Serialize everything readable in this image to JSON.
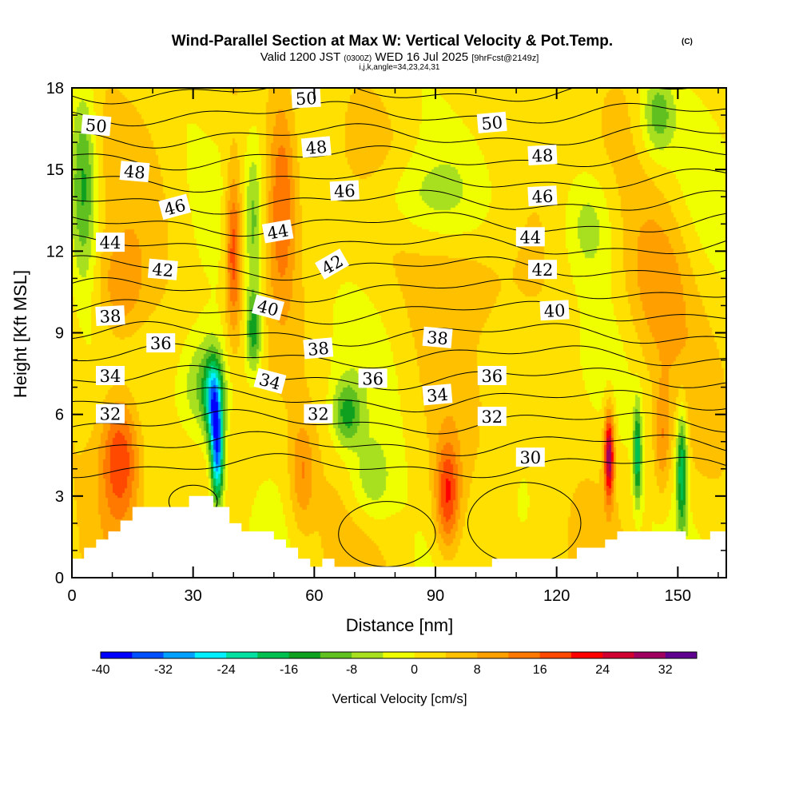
{
  "chart_data": {
    "type": "heatmap",
    "title": "Wind-Parallel Section at Max W: Vertical Velocity & Pot.Temp.",
    "title_mark": "(C)",
    "subtitle_parts": [
      "Valid 1200 JST",
      "(0300Z)",
      "WED 16 Jul 2025",
      "[9hrFcst@2149z]"
    ],
    "subtitle2": "i,j,k,angle=34,23,24,31",
    "xlabel": "Distance [nm]",
    "ylabel": "Height [Kft MSL]",
    "xlim": [
      0,
      162
    ],
    "ylim": [
      0,
      18
    ],
    "xticks": [
      0,
      30,
      60,
      90,
      120,
      150
    ],
    "yticks": [
      0,
      3,
      6,
      9,
      12,
      15,
      18
    ],
    "colorbar": {
      "label": "Vertical Velocity [cm/s]",
      "levels": [
        -40,
        -36,
        -32,
        -28,
        -24,
        -20,
        -16,
        -12,
        -8,
        -4,
        0,
        4,
        8,
        12,
        16,
        20,
        24,
        28,
        32,
        36
      ],
      "tick_labels": [
        "-40",
        "-32",
        "-24",
        "-16",
        "-8",
        "0",
        "8",
        "16",
        "24",
        "32"
      ],
      "colors": [
        "#0000ff",
        "#0050ff",
        "#00a0ff",
        "#00f0ff",
        "#00e0a0",
        "#00c050",
        "#10a020",
        "#60c020",
        "#a8e020",
        "#f0ff00",
        "#ffe000",
        "#ffc000",
        "#ffa000",
        "#ff7800",
        "#ff4800",
        "#ff0000",
        "#d00030",
        "#a00060",
        "#600090"
      ]
    },
    "velocity_features": [
      {
        "x": 3,
        "z": 14.5,
        "w": -14,
        "wx": 3,
        "wz": 3.5
      },
      {
        "x": 12,
        "z": 4.5,
        "w": 20,
        "wx": 5,
        "wz": 2.5
      },
      {
        "x": 12,
        "z": 10.5,
        "w": 10,
        "wx": 6,
        "wz": 2
      },
      {
        "x": 33,
        "z": 7,
        "w": -14,
        "wx": 6,
        "wz": 2
      },
      {
        "x": 36,
        "z": 4.5,
        "w": -34,
        "wx": 1.6,
        "wz": 1.8
      },
      {
        "x": 35,
        "z": 6.5,
        "w": -24,
        "wx": 2,
        "wz": 1.5
      },
      {
        "x": 40,
        "z": 12,
        "w": 18,
        "wx": 2,
        "wz": 3
      },
      {
        "x": 45,
        "z": 9,
        "w": -16,
        "wx": 2,
        "wz": 1.5
      },
      {
        "x": 45,
        "z": 13,
        "w": -10,
        "wx": 2,
        "wz": 3
      },
      {
        "x": 52,
        "z": 14,
        "w": 14,
        "wx": 3.5,
        "wz": 4
      },
      {
        "x": 57,
        "z": 3.8,
        "w": 10,
        "wx": 3,
        "wz": 2
      },
      {
        "x": 68,
        "z": 6,
        "w": -14,
        "wx": 3.5,
        "wz": 1.2
      },
      {
        "x": 74,
        "z": 3.5,
        "w": -8,
        "wx": 5,
        "wz": 1.5
      },
      {
        "x": 84,
        "z": 14,
        "w": -6,
        "wx": 12,
        "wz": 1.5
      },
      {
        "x": 93,
        "z": 3,
        "w": 18,
        "wx": 3,
        "wz": 2
      },
      {
        "x": 97,
        "z": 11,
        "w": 6,
        "wx": 10,
        "wz": 2
      },
      {
        "x": 133,
        "z": 4.5,
        "w": 30,
        "wx": 1.2,
        "wz": 1.6
      },
      {
        "x": 140,
        "z": 4.5,
        "w": -20,
        "wx": 1,
        "wz": 1.8
      },
      {
        "x": 146,
        "z": 5,
        "w": 10,
        "wx": 2,
        "wz": 2
      },
      {
        "x": 151,
        "z": 4,
        "w": -22,
        "wx": 1.4,
        "wz": 2.2
      },
      {
        "x": 145,
        "z": 11,
        "w": 8,
        "wx": 8,
        "wz": 3
      },
      {
        "x": 128,
        "z": 13,
        "w": -8,
        "wx": 6,
        "wz": 2
      },
      {
        "x": 145,
        "z": 17,
        "w": -12,
        "wx": 4,
        "wz": 1.5
      }
    ],
    "terrain": [
      [
        0,
        0.7
      ],
      [
        3,
        0.7
      ],
      [
        3,
        1.1
      ],
      [
        6,
        1.1
      ],
      [
        6,
        1.4
      ],
      [
        9,
        1.4
      ],
      [
        9,
        1.7
      ],
      [
        12,
        1.7
      ],
      [
        12,
        2.1
      ],
      [
        15,
        2.1
      ],
      [
        15,
        2.6
      ],
      [
        20,
        2.6
      ],
      [
        20,
        2.6
      ],
      [
        29,
        2.6
      ],
      [
        29,
        3
      ],
      [
        35,
        3
      ],
      [
        35,
        2.6
      ],
      [
        39,
        2.6
      ],
      [
        39,
        2.0
      ],
      [
        42,
        2.0
      ],
      [
        42,
        1.7
      ],
      [
        50,
        1.7
      ],
      [
        50,
        1.4
      ],
      [
        53,
        1.4
      ],
      [
        53,
        1.1
      ],
      [
        56,
        1.1
      ],
      [
        56,
        0.7
      ],
      [
        59,
        0.7
      ],
      [
        59,
        0.4
      ],
      [
        62,
        0.4
      ],
      [
        62,
        0.7
      ],
      [
        65,
        0.7
      ],
      [
        65,
        0.4
      ],
      [
        104,
        0.4
      ],
      [
        104,
        0.7
      ],
      [
        113,
        0.7
      ],
      [
        113,
        0.7
      ],
      [
        125,
        0.7
      ],
      [
        125,
        1.1
      ],
      [
        132,
        1.1
      ],
      [
        132,
        1.4
      ],
      [
        135,
        1.4
      ],
      [
        135,
        1.7
      ],
      [
        152,
        1.7
      ],
      [
        152,
        1.4
      ],
      [
        158,
        1.4
      ],
      [
        158,
        1.7
      ],
      [
        162,
        1.7
      ]
    ],
    "theta_contour_levels": [
      30,
      31,
      32,
      33,
      34,
      35,
      36,
      37,
      38,
      39,
      40,
      41,
      42,
      43,
      44,
      45,
      46,
      47,
      48,
      49,
      50,
      51
    ],
    "theta_labels": [
      {
        "text": "50",
        "x": 6,
        "z": 16.6,
        "angle": 5
      },
      {
        "text": "48",
        "x": 15.5,
        "z": 14.9,
        "angle": 5
      },
      {
        "text": "46",
        "x": 25.5,
        "z": 13.6,
        "angle": -15
      },
      {
        "text": "44",
        "x": 9.5,
        "z": 12.3,
        "angle": 0
      },
      {
        "text": "42",
        "x": 22.5,
        "z": 11.3,
        "angle": 5
      },
      {
        "text": "38",
        "x": 9.5,
        "z": 9.6,
        "angle": -3
      },
      {
        "text": "36",
        "x": 22,
        "z": 8.6,
        "angle": 0
      },
      {
        "text": "34",
        "x": 9.5,
        "z": 7.4,
        "angle": 0
      },
      {
        "text": "32",
        "x": 9.5,
        "z": 6.0,
        "angle": 0
      },
      {
        "text": "50",
        "x": 58,
        "z": 17.6,
        "angle": -3
      },
      {
        "text": "48",
        "x": 60.5,
        "z": 15.8,
        "angle": -5
      },
      {
        "text": "46",
        "x": 67.5,
        "z": 14.2,
        "angle": -3
      },
      {
        "text": "44",
        "x": 51,
        "z": 12.7,
        "angle": -10
      },
      {
        "text": "42",
        "x": 64.5,
        "z": 11.5,
        "angle": -30
      },
      {
        "text": "40",
        "x": 48.5,
        "z": 9.9,
        "angle": 15
      },
      {
        "text": "38",
        "x": 61,
        "z": 8.4,
        "angle": -5
      },
      {
        "text": "36",
        "x": 74.5,
        "z": 7.3,
        "angle": 0
      },
      {
        "text": "34",
        "x": 49,
        "z": 7.2,
        "angle": 15
      },
      {
        "text": "32",
        "x": 61,
        "z": 6.0,
        "angle": 0
      },
      {
        "text": "38",
        "x": 90.5,
        "z": 8.8,
        "angle": 5
      },
      {
        "text": "34",
        "x": 90.5,
        "z": 6.7,
        "angle": -5
      },
      {
        "text": "50",
        "x": 104,
        "z": 16.7,
        "angle": -5
      },
      {
        "text": "48",
        "x": 116.5,
        "z": 15.5,
        "angle": -3
      },
      {
        "text": "46",
        "x": 116.5,
        "z": 14.0,
        "angle": -3
      },
      {
        "text": "44",
        "x": 113.5,
        "z": 12.5,
        "angle": 0
      },
      {
        "text": "42",
        "x": 116.5,
        "z": 11.3,
        "angle": 0
      },
      {
        "text": "40",
        "x": 119.5,
        "z": 9.8,
        "angle": -3
      },
      {
        "text": "36",
        "x": 104,
        "z": 7.4,
        "angle": 0
      },
      {
        "text": "32",
        "x": 104,
        "z": 5.9,
        "angle": 0
      },
      {
        "text": "30",
        "x": 113.5,
        "z": 4.4,
        "angle": 0
      }
    ],
    "grid": false
  }
}
